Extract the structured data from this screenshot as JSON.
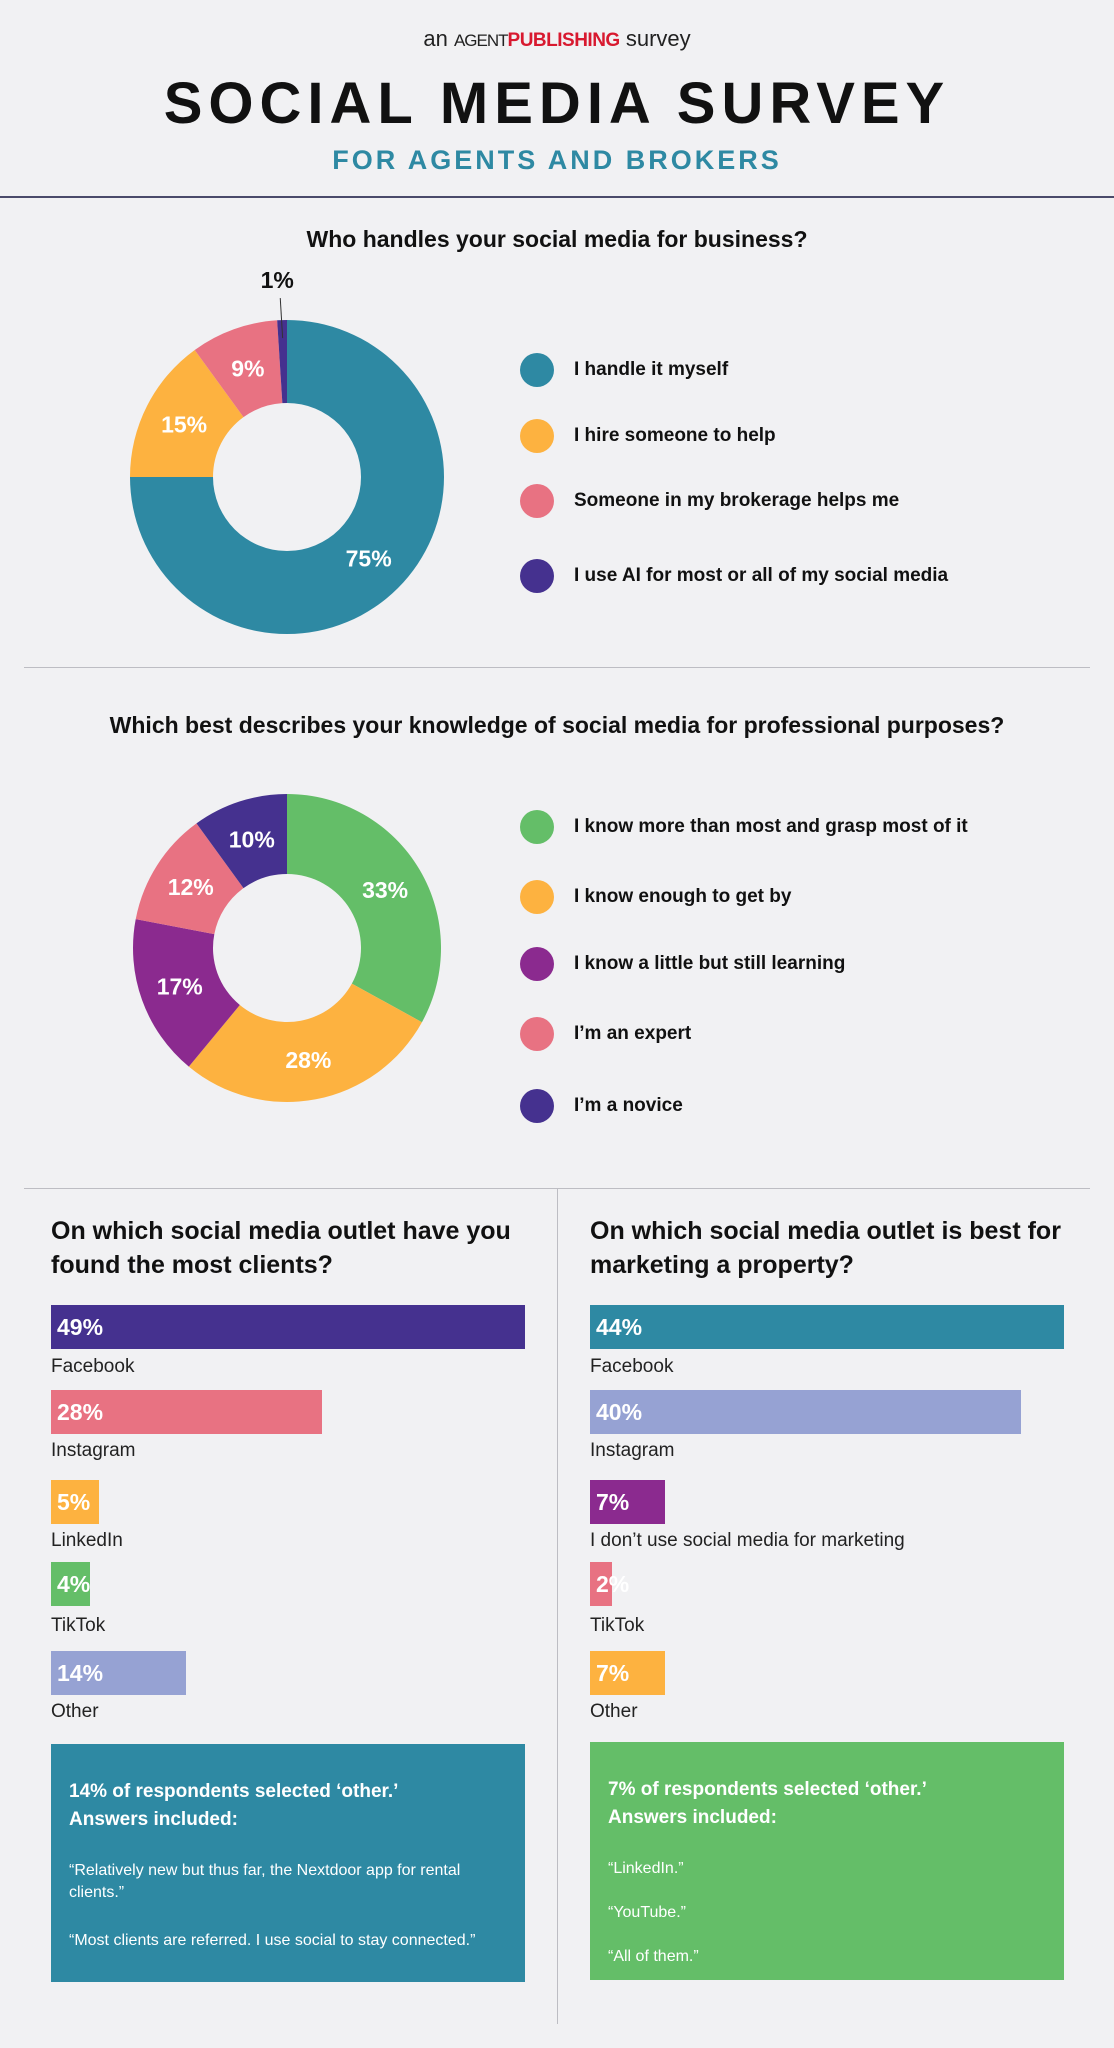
{
  "header": {
    "brand_prefix": "an",
    "brand_agent": "AGENT",
    "brand_publishing": "PUBLISHING",
    "brand_suffix": "survey",
    "title": "SOCIAL MEDIA SURVEY",
    "subtitle": "FOR AGENTS AND BROKERS"
  },
  "colors": {
    "teal": "#2E89A3",
    "orange": "#FDB240",
    "pink": "#E87282",
    "indigo": "#45318F",
    "green": "#64BE68",
    "purple": "#8B2A8F",
    "lavender": "#96A2D3",
    "background": "#F1F1F3",
    "brand_red": "#D8192F"
  },
  "chart_data": [
    {
      "type": "pie",
      "title": "Who handles your social media for business?",
      "categories": [
        "I handle it myself",
        "I hire someone to help",
        "Someone in my brokerage helps me",
        "I use AI for most or all of my social media"
      ],
      "values": [
        75,
        15,
        9,
        1
      ],
      "labels": [
        "75%",
        "15%",
        "9%",
        "1%"
      ],
      "colors": [
        "#2E89A3",
        "#FDB240",
        "#E87282",
        "#45318F"
      ],
      "donut": true,
      "legend": "right"
    },
    {
      "type": "pie",
      "title": "Which best describes your knowledge of social media for professional purposes?",
      "categories": [
        "I know more than most and grasp most of it",
        "I know enough to get by",
        "I know a little but still learning",
        "I’m an expert",
        "I’m a novice"
      ],
      "values": [
        33,
        28,
        17,
        12,
        10
      ],
      "labels": [
        "33%",
        "28%",
        "17%",
        "12%",
        "10%"
      ],
      "colors": [
        "#64BE68",
        "#FDB240",
        "#8B2A8F",
        "#E87282",
        "#45318F"
      ],
      "donut": true,
      "legend": "right"
    },
    {
      "type": "bar",
      "orientation": "horizontal",
      "title": "On which social media outlet have you found the most clients?",
      "categories": [
        "Facebook",
        "Instagram",
        "LinkedIn",
        "TikTok",
        "Other"
      ],
      "values": [
        49,
        28,
        5,
        4,
        14
      ],
      "labels": [
        "49%",
        "28%",
        "5%",
        "4%",
        "14%"
      ],
      "colors": [
        "#45318F",
        "#E87282",
        "#FDB240",
        "#64BE68",
        "#96A2D3"
      ]
    },
    {
      "type": "bar",
      "orientation": "horizontal",
      "title": "On which social media outlet is best for marketing a property?",
      "categories": [
        "Facebook",
        "Instagram",
        "I don’t use social media for marketing",
        "TikTok",
        "Other"
      ],
      "values": [
        44,
        40,
        7,
        2,
        7
      ],
      "labels": [
        "44%",
        "40%",
        "7%",
        "2%",
        "7%"
      ],
      "colors": [
        "#2E89A3",
        "#96A2D3",
        "#8B2A8F",
        "#E87282",
        "#FDB240"
      ]
    }
  ],
  "other_boxes": [
    {
      "heading_line1": "14% of respondents selected ‘other.’",
      "heading_line2": "Answers included:",
      "quotes": [
        "“Relatively new but thus far, the Nextdoor app for rental clients.”",
        "“Most clients are referred. I use social to stay connected.”"
      ],
      "color": "#2E89A3"
    },
    {
      "heading_line1": "7% of respondents selected ‘other.’",
      "heading_line2": "Answers included:",
      "quotes": [
        "“LinkedIn.”",
        "“YouTube.”",
        "“All of them.”"
      ],
      "color": "#64BE68"
    }
  ]
}
